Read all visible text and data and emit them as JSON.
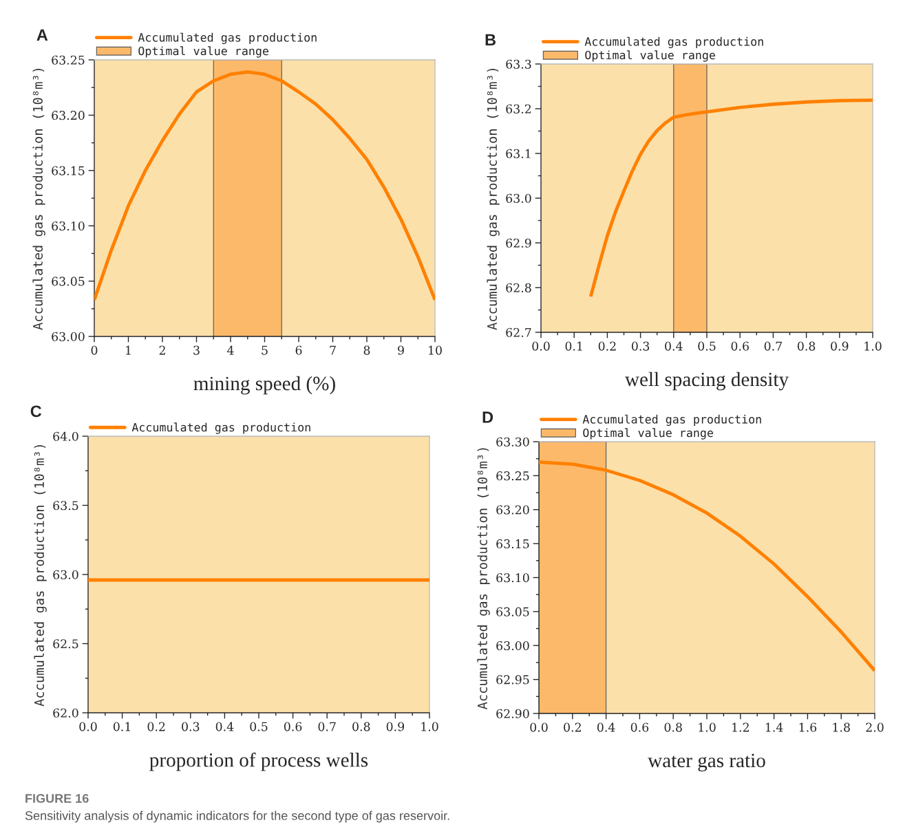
{
  "chart_data": [
    {
      "type": "line",
      "title": "A",
      "xlabel": "mining speed (%)",
      "ylabel": "Accumulated gas production (10⁸m³)",
      "x": [
        0,
        0.5,
        1,
        1.5,
        2,
        2.5,
        3,
        3.5,
        4,
        4.5,
        5,
        5.5,
        6,
        6.5,
        7,
        7.5,
        8,
        8.5,
        9,
        9.5,
        10
      ],
      "series": [
        {
          "name": "Accumulated gas production",
          "color": "#ff8000",
          "values": [
            63.033,
            63.078,
            63.118,
            63.15,
            63.177,
            63.201,
            63.221,
            63.231,
            63.237,
            63.239,
            63.237,
            63.231,
            63.221,
            63.21,
            63.196,
            63.179,
            63.16,
            63.135,
            63.106,
            63.072,
            63.033
          ]
        }
      ],
      "bands": [
        {
          "axis": "x",
          "from": 3.5,
          "to": 5.5,
          "label": "Optimal value range",
          "color": "#fdb96a"
        }
      ],
      "xlim": [
        0,
        10
      ],
      "xticks": [
        0,
        1,
        2,
        3,
        4,
        5,
        6,
        7,
        8,
        9,
        10
      ],
      "ylim": [
        63.0,
        63.25
      ],
      "yticks": [
        {
          "value": 63.0,
          "label": "63.00"
        },
        63.05,
        {
          "value": 63.1,
          "label": "63.10"
        },
        63.15,
        {
          "value": 63.2,
          "label": "63.20"
        },
        63.25
      ],
      "legend": "top left",
      "grid": false,
      "annotations": [
        "FIGURE 16",
        "Sensitivity analysis of dynamic indicators for the second type of gas reservoir."
      ]
    },
    {
      "type": "line",
      "title": "B",
      "xlabel": "well spacing density",
      "ylabel": "Accumulated gas production (10⁸m³)",
      "x": [
        0.15,
        0.175,
        0.2,
        0.225,
        0.25,
        0.275,
        0.3,
        0.325,
        0.35,
        0.375,
        0.4,
        0.45,
        0.5,
        0.6,
        0.7,
        0.8,
        0.9,
        1.0
      ],
      "series": [
        {
          "name": "Accumulated gas production",
          "color": "#ff8000",
          "values": [
            62.78,
            62.85,
            62.916,
            62.97,
            63.016,
            63.06,
            63.098,
            63.128,
            63.151,
            63.168,
            63.181,
            63.188,
            63.193,
            63.203,
            63.21,
            63.215,
            63.218,
            63.219
          ]
        }
      ],
      "bands": [
        {
          "axis": "x",
          "from": 0.4,
          "to": 0.5,
          "label": "Optimal value range",
          "color": "#fdb96a"
        }
      ],
      "xlim": [
        0,
        1
      ],
      "xticks": [
        {
          "value": 0,
          "label": "0.0"
        },
        0.1,
        0.2,
        0.3,
        0.4,
        0.5,
        0.6,
        0.7,
        0.8,
        0.9,
        {
          "value": 1,
          "label": "1.0"
        }
      ],
      "ylim": [
        62.7,
        63.3
      ],
      "yticks": [
        62.7,
        62.8,
        62.9,
        {
          "value": 63.0,
          "label": "63.0"
        },
        63.1,
        63.2,
        63.3
      ],
      "legend": "top left",
      "grid": false
    },
    {
      "type": "line",
      "title": "C",
      "xlabel": "proportion of process wells",
      "ylabel": "Accumulated gas production (10⁸m³)",
      "x": [
        0,
        1
      ],
      "series": [
        {
          "name": "Accumulated gas production",
          "color": "#ff8000",
          "values": [
            62.96,
            62.96
          ]
        }
      ],
      "xlim": [
        0,
        1
      ],
      "xticks": [
        {
          "value": 0,
          "label": "0.0"
        },
        0.1,
        0.2,
        0.3,
        0.4,
        0.5,
        0.6,
        0.7,
        0.8,
        0.9,
        {
          "value": 1,
          "label": "1.0"
        }
      ],
      "ylim": [
        62.0,
        64.0
      ],
      "yticks": [
        {
          "value": 62.0,
          "label": "62.0"
        },
        62.5,
        {
          "value": 63.0,
          "label": "63.0"
        },
        63.5,
        {
          "value": 64.0,
          "label": "64.0"
        }
      ],
      "legend": "top left",
      "grid": false
    },
    {
      "type": "line",
      "title": "D",
      "xlabel": "water gas ratio",
      "ylabel": "Accumulated gas production (10⁸m³)",
      "x": [
        0,
        0.2,
        0.4,
        0.6,
        0.8,
        1.0,
        1.2,
        1.4,
        1.6,
        1.8,
        2.0
      ],
      "series": [
        {
          "name": "Accumulated gas production",
          "color": "#ff8000",
          "values": [
            63.27,
            63.267,
            63.258,
            63.243,
            63.222,
            63.195,
            63.161,
            63.12,
            63.072,
            63.02,
            62.963
          ]
        }
      ],
      "bands": [
        {
          "axis": "x",
          "from": 0,
          "to": 0.4,
          "label": "Optimal value range",
          "color": "#fdb96a"
        }
      ],
      "xlim": [
        0,
        2
      ],
      "xticks": [
        {
          "value": 0,
          "label": "0.0"
        },
        0.2,
        0.4,
        0.6,
        0.8,
        {
          "value": 1,
          "label": "1.0"
        },
        1.2,
        1.4,
        1.6,
        1.8,
        {
          "value": 2,
          "label": "2.0"
        }
      ],
      "ylim": [
        62.9,
        63.3
      ],
      "yticks": [
        {
          "value": 62.9,
          "label": "62.90"
        },
        62.95,
        {
          "value": 63.0,
          "label": "63.00"
        },
        63.05,
        {
          "value": 63.1,
          "label": "63.10"
        },
        63.15,
        {
          "value": 63.2,
          "label": "63.20"
        },
        63.25,
        {
          "value": 63.3,
          "label": "63.30"
        }
      ],
      "legend": "top left",
      "grid": false
    }
  ]
}
